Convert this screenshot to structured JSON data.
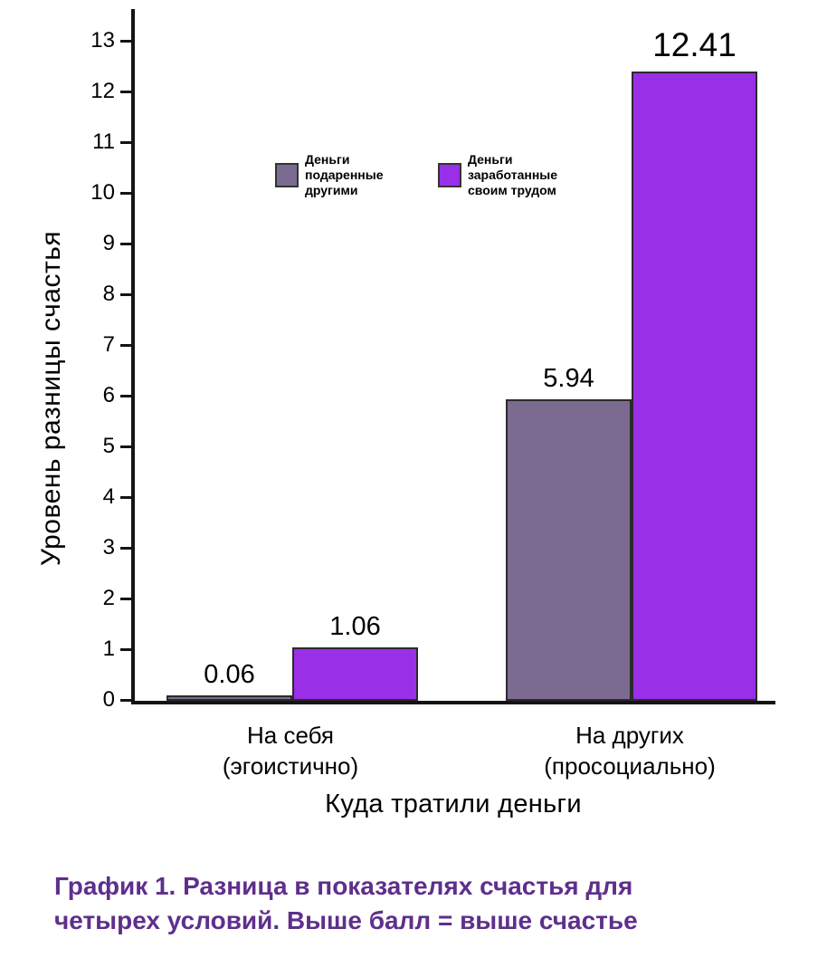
{
  "chart_data": {
    "type": "bar",
    "title": "",
    "xlabel": "Куда тратили деньги",
    "ylabel": "Уровень разницы счастья",
    "ylim": [
      0,
      13
    ],
    "yticks": [
      0,
      1,
      2,
      3,
      4,
      5,
      6,
      7,
      8,
      9,
      10,
      11,
      12,
      13
    ],
    "grid": false,
    "legend_position": "inside-top",
    "axis_color": "#141414",
    "categories": [
      "На себя\n(эгоистично)",
      "На других\n(просоциально)"
    ],
    "series": [
      {
        "name": "Деньги подаренные другими",
        "legend_label": "Деньги\nподаренные\nдругими",
        "color": "#7c6b90",
        "values": [
          0.06,
          5.94
        ]
      },
      {
        "name": "Деньги заработанные своим трудом",
        "legend_label": "Деньги\nзаработанные\nсвоим трудом",
        "color": "#9a2fe8",
        "values": [
          1.06,
          12.41
        ]
      }
    ],
    "bar_value_labels": [
      [
        "0.06",
        "5.94"
      ],
      [
        "1.06",
        "12.41"
      ]
    ]
  },
  "caption": {
    "text": "График 1. Разница в показателях счастья для\nчетырех условий. Выше балл = выше счастье",
    "color": "#5e2f8c"
  }
}
